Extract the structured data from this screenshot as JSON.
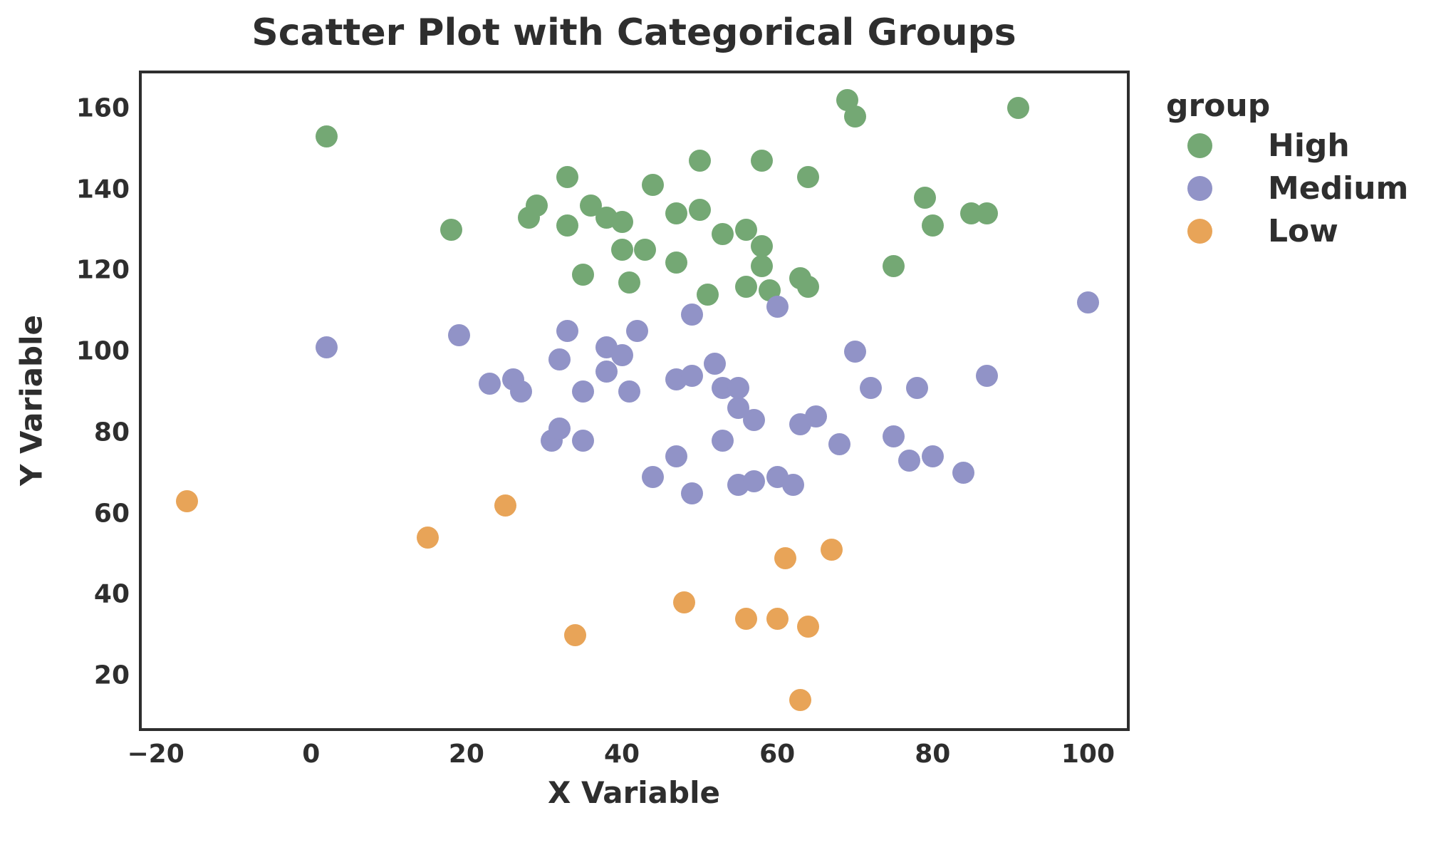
{
  "figure": {
    "background": "#ffffff",
    "text_color": "#2e2e2e",
    "spine_color": "#2e2e2e"
  },
  "chart_data": {
    "type": "scatter",
    "title": "Scatter Plot with Categorical Groups",
    "xlabel": "X Variable",
    "ylabel": "Y Variable",
    "xlim": [
      -21.8,
      105.0
    ],
    "ylim": [
      7.0,
      168.6
    ],
    "grid": false,
    "x_ticks": [
      {
        "label": "−20",
        "value": -20
      },
      {
        "label": "0",
        "value": 0
      },
      {
        "label": "20",
        "value": 20
      },
      {
        "label": "40",
        "value": 40
      },
      {
        "label": "60",
        "value": 60
      },
      {
        "label": "80",
        "value": 80
      },
      {
        "label": "100",
        "value": 100
      }
    ],
    "y_ticks": [
      {
        "label": "20",
        "value": 20
      },
      {
        "label": "40",
        "value": 40
      },
      {
        "label": "60",
        "value": 60
      },
      {
        "label": "80",
        "value": 80
      },
      {
        "label": "100",
        "value": 100
      },
      {
        "label": "120",
        "value": 120
      },
      {
        "label": "140",
        "value": 140
      },
      {
        "label": "160",
        "value": 160
      }
    ],
    "legend": {
      "title": "group",
      "position": "upper-right-outside"
    },
    "series": [
      {
        "name": "High",
        "color": "#74a874",
        "points": [
          [
            2,
            153
          ],
          [
            18,
            130
          ],
          [
            28,
            133
          ],
          [
            29,
            136
          ],
          [
            33,
            131
          ],
          [
            33,
            143
          ],
          [
            35,
            119
          ],
          [
            36,
            136
          ],
          [
            38,
            133
          ],
          [
            40,
            125
          ],
          [
            40,
            132
          ],
          [
            41,
            117
          ],
          [
            43,
            125
          ],
          [
            44,
            141
          ],
          [
            47,
            122
          ],
          [
            47,
            134
          ],
          [
            50,
            135
          ],
          [
            50,
            147
          ],
          [
            51,
            114
          ],
          [
            53,
            129
          ],
          [
            56,
            116
          ],
          [
            56,
            130
          ],
          [
            58,
            121
          ],
          [
            58,
            126
          ],
          [
            58,
            147
          ],
          [
            59,
            115
          ],
          [
            63,
            118
          ],
          [
            64,
            116
          ],
          [
            64,
            143
          ],
          [
            69,
            162
          ],
          [
            70,
            158
          ],
          [
            75,
            121
          ],
          [
            79,
            138
          ],
          [
            80,
            131
          ],
          [
            85,
            134
          ],
          [
            87,
            134
          ],
          [
            91,
            160
          ]
        ]
      },
      {
        "name": "Medium",
        "color": "#9193c7",
        "points": [
          [
            2,
            101
          ],
          [
            19,
            104
          ],
          [
            23,
            92
          ],
          [
            26,
            93
          ],
          [
            27,
            90
          ],
          [
            31,
            78
          ],
          [
            32,
            81
          ],
          [
            32,
            98
          ],
          [
            33,
            105
          ],
          [
            35,
            78
          ],
          [
            35,
            90
          ],
          [
            38,
            95
          ],
          [
            38,
            101
          ],
          [
            40,
            99
          ],
          [
            41,
            90
          ],
          [
            42,
            105
          ],
          [
            44,
            69
          ],
          [
            47,
            74
          ],
          [
            47,
            93
          ],
          [
            49,
            65
          ],
          [
            49,
            94
          ],
          [
            49,
            109
          ],
          [
            52,
            97
          ],
          [
            53,
            78
          ],
          [
            53,
            91
          ],
          [
            55,
            67
          ],
          [
            55,
            86
          ],
          [
            55,
            91
          ],
          [
            57,
            68
          ],
          [
            57,
            83
          ],
          [
            60,
            69
          ],
          [
            60,
            111
          ],
          [
            62,
            67
          ],
          [
            63,
            82
          ],
          [
            65,
            84
          ],
          [
            68,
            77
          ],
          [
            70,
            100
          ],
          [
            72,
            91
          ],
          [
            75,
            79
          ],
          [
            77,
            73
          ],
          [
            78,
            91
          ],
          [
            80,
            74
          ],
          [
            84,
            70
          ],
          [
            87,
            94
          ],
          [
            100,
            112
          ]
        ]
      },
      {
        "name": "Low",
        "color": "#e8a458",
        "points": [
          [
            -16,
            63
          ],
          [
            15,
            54
          ],
          [
            25,
            62
          ],
          [
            34,
            30
          ],
          [
            48,
            38
          ],
          [
            56,
            34
          ],
          [
            60,
            34
          ],
          [
            61,
            49
          ],
          [
            63,
            14
          ],
          [
            64,
            32
          ],
          [
            67,
            51
          ]
        ]
      }
    ]
  }
}
